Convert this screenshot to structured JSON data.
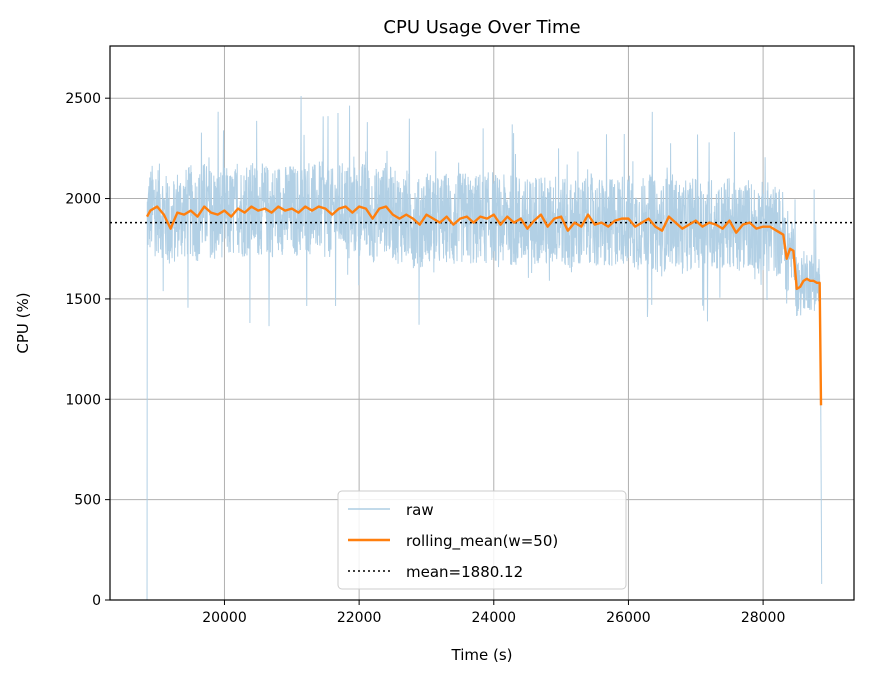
{
  "chart_data": {
    "type": "line",
    "title": "CPU Usage Over Time",
    "xlabel": "Time (s)",
    "ylabel": "CPU (%)",
    "xlim": [
      18300,
      29350
    ],
    "ylim": [
      0,
      2760
    ],
    "x_ticks": [
      20000,
      22000,
      24000,
      26000,
      28000
    ],
    "y_ticks": [
      0,
      500,
      1000,
      1500,
      2000,
      2500
    ],
    "grid": true,
    "legend_position": "lower center",
    "mean_value": 1880.12,
    "raw_range": {
      "x_start": 18850,
      "x_end": 28870
    },
    "series": [
      {
        "name": "raw",
        "color": "#aecde4",
        "style": "thin noisy line",
        "values_sampled": [
          [
            18850,
            0
          ],
          [
            18870,
            2250
          ],
          [
            18950,
            1650
          ],
          [
            19000,
            2300
          ],
          [
            19100,
            1550
          ],
          [
            19200,
            2420
          ],
          [
            19300,
            1700
          ],
          [
            19500,
            2250
          ],
          [
            19700,
            1600
          ],
          [
            20000,
            2350
          ],
          [
            20300,
            1650
          ],
          [
            20600,
            2200
          ],
          [
            20900,
            1700
          ],
          [
            21200,
            2300
          ],
          [
            21500,
            2460
          ],
          [
            21700,
            1600
          ],
          [
            22000,
            2400
          ],
          [
            22400,
            1700
          ],
          [
            22800,
            2250
          ],
          [
            23200,
            1650
          ],
          [
            23600,
            2200
          ],
          [
            24000,
            2510
          ],
          [
            24300,
            1600
          ],
          [
            24700,
            2250
          ],
          [
            25000,
            1550
          ],
          [
            25400,
            2200
          ],
          [
            25800,
            1650
          ],
          [
            26200,
            2300
          ],
          [
            26600,
            1700
          ],
          [
            27000,
            2200
          ],
          [
            27400,
            1650
          ],
          [
            27800,
            2150
          ],
          [
            28100,
            1600
          ],
          [
            28300,
            1550
          ],
          [
            28500,
            1450
          ],
          [
            28700,
            1400
          ],
          [
            28840,
            1350
          ],
          [
            28860,
            1000
          ],
          [
            28870,
            80
          ]
        ]
      },
      {
        "name": "rolling_mean(w=50)",
        "color": "#ff7f0e",
        "x": [
          18850,
          18900,
          19000,
          19100,
          19200,
          19300,
          19400,
          19500,
          19600,
          19700,
          19800,
          19900,
          20000,
          20100,
          20200,
          20300,
          20400,
          20500,
          20600,
          20700,
          20800,
          20900,
          21000,
          21100,
          21200,
          21300,
          21400,
          21500,
          21600,
          21700,
          21800,
          21900,
          22000,
          22100,
          22200,
          22300,
          22400,
          22500,
          22600,
          22700,
          22800,
          22900,
          23000,
          23100,
          23200,
          23300,
          23400,
          23500,
          23600,
          23700,
          23800,
          23900,
          24000,
          24100,
          24200,
          24300,
          24400,
          24500,
          24600,
          24700,
          24800,
          24900,
          25000,
          25100,
          25200,
          25300,
          25400,
          25500,
          25600,
          25700,
          25800,
          25900,
          26000,
          26100,
          26200,
          26300,
          26400,
          26500,
          26600,
          26700,
          26800,
          26900,
          27000,
          27100,
          27200,
          27300,
          27400,
          27500,
          27600,
          27700,
          27800,
          27900,
          28000,
          28100,
          28200,
          28300,
          28350,
          28400,
          28450,
          28500,
          28550,
          28600,
          28650,
          28700,
          28750,
          28800,
          28840,
          28860
        ],
        "values": [
          1910,
          1940,
          1960,
          1920,
          1850,
          1930,
          1920,
          1940,
          1910,
          1960,
          1930,
          1920,
          1940,
          1910,
          1950,
          1930,
          1960,
          1940,
          1950,
          1930,
          1960,
          1940,
          1950,
          1930,
          1960,
          1940,
          1960,
          1950,
          1920,
          1950,
          1960,
          1930,
          1960,
          1950,
          1900,
          1950,
          1960,
          1920,
          1900,
          1920,
          1900,
          1870,
          1920,
          1900,
          1880,
          1910,
          1870,
          1900,
          1910,
          1880,
          1910,
          1900,
          1920,
          1870,
          1910,
          1880,
          1900,
          1850,
          1890,
          1920,
          1860,
          1900,
          1910,
          1840,
          1880,
          1860,
          1920,
          1870,
          1880,
          1860,
          1890,
          1900,
          1900,
          1860,
          1880,
          1900,
          1860,
          1840,
          1910,
          1880,
          1850,
          1870,
          1890,
          1860,
          1880,
          1870,
          1850,
          1890,
          1830,
          1870,
          1880,
          1850,
          1860,
          1860,
          1840,
          1820,
          1700,
          1750,
          1740,
          1550,
          1560,
          1590,
          1600,
          1590,
          1590,
          1580,
          1580,
          970
        ]
      },
      {
        "name": "mean=1880.12",
        "color": "#000000",
        "style": "dotted horizontal line",
        "value": 1880.12
      }
    ]
  }
}
